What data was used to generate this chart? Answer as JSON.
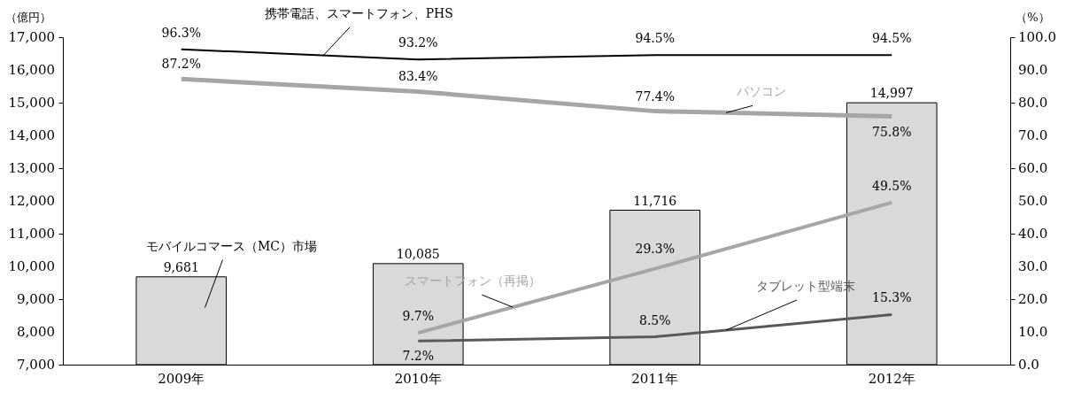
{
  "chart_data": {
    "type": "bar",
    "categories": [
      "2009年",
      "2010年",
      "2011年",
      "2012年"
    ],
    "ylabel": "（億円）",
    "y2label": "（%）",
    "ylim": [
      7000,
      17000
    ],
    "yticks": [
      {
        "value": 7000,
        "label": "7,000"
      },
      {
        "value": 8000,
        "label": "8,000"
      },
      {
        "value": 9000,
        "label": "9,000"
      },
      {
        "value": 10000,
        "label": "10,000"
      },
      {
        "value": 11000,
        "label": "11,000"
      },
      {
        "value": 12000,
        "label": "12,000"
      },
      {
        "value": 13000,
        "label": "13,000"
      },
      {
        "value": 14000,
        "label": "14,000"
      },
      {
        "value": 15000,
        "label": "15,000"
      },
      {
        "value": 16000,
        "label": "16,000"
      },
      {
        "value": 17000,
        "label": "17,000"
      }
    ],
    "y2lim": [
      0,
      100
    ],
    "y2ticks": [
      {
        "value": 0,
        "label": "0.0"
      },
      {
        "value": 10,
        "label": "10.0"
      },
      {
        "value": 20,
        "label": "20.0"
      },
      {
        "value": 30,
        "label": "30.0"
      },
      {
        "value": 40,
        "label": "40.0"
      },
      {
        "value": 50,
        "label": "50.0"
      },
      {
        "value": 60,
        "label": "60.0"
      },
      {
        "value": 70,
        "label": "70.0"
      },
      {
        "value": 80,
        "label": "80.0"
      },
      {
        "value": 90,
        "label": "90.0"
      },
      {
        "value": 100,
        "label": "100.0"
      }
    ],
    "grid": false,
    "legend": false,
    "series": [
      {
        "name": "モバイルコマース（MC）市場",
        "color": "#d9d9d9",
        "values": [
          9681,
          10085,
          11716,
          14997
        ],
        "value_labels": [
          "9,681",
          "10,085",
          "11,716",
          "14,997"
        ]
      },
      {
        "name": "携帯電話、スマートフォン、PHS",
        "type": "line",
        "axis": "y2",
        "color": "#000000",
        "values": [
          96.3,
          93.2,
          94.5,
          94.5
        ],
        "value_labels": [
          "96.3%",
          "93.2%",
          "94.5%",
          "94.5%"
        ]
      },
      {
        "name": "パソコン",
        "type": "line",
        "axis": "y2",
        "color": "#a6a6a6",
        "values": [
          87.2,
          83.4,
          77.4,
          75.8
        ],
        "value_labels": [
          "87.2%",
          "83.4%",
          "77.4%",
          "75.8%"
        ]
      },
      {
        "name": "スマートフォン（再掲）",
        "type": "line",
        "axis": "y2",
        "color": "#a6a6a6",
        "values": [
          null,
          9.7,
          29.3,
          49.5
        ],
        "value_labels": [
          null,
          "9.7%",
          "29.3%",
          "49.5%"
        ]
      },
      {
        "name": "タブレット型端末",
        "type": "line",
        "axis": "y2",
        "color": "#595959",
        "values": [
          null,
          7.2,
          8.5,
          15.3
        ],
        "value_labels": [
          null,
          "7.2%",
          "8.5%",
          "15.3%"
        ]
      }
    ]
  }
}
